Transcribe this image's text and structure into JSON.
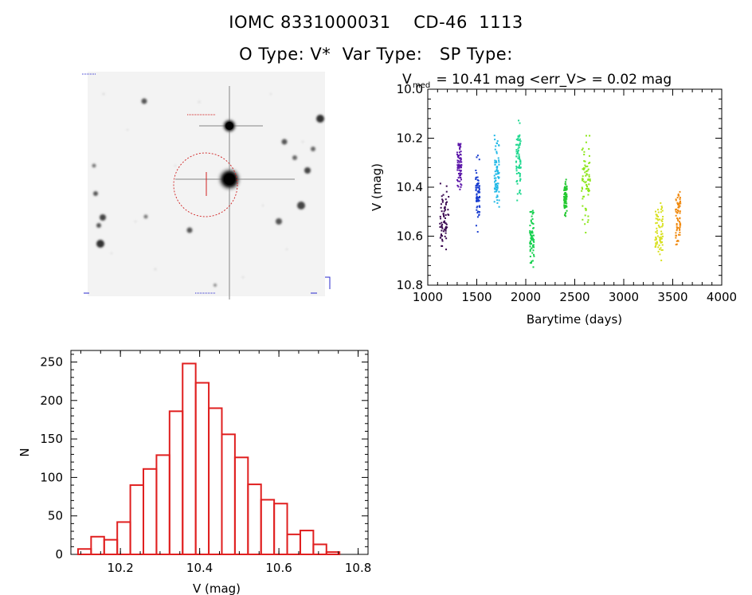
{
  "header": {
    "line1": "IOMC 8331000031    CD-46  1113",
    "line2": "O Type: V*  Var Type:   SP Type:"
  },
  "chart_data": [
    {
      "type": "scatter",
      "title_main": "V",
      "title_sub": "med",
      "title_rest": " = 10.41 mag <err_V> = 0.02 mag",
      "xlabel": "Barytime (days)",
      "ylabel": "V (mag)",
      "xlim": [
        1000,
        4000
      ],
      "ylim": [
        10.8,
        10.0
      ],
      "y_inverted": true,
      "xticks": [
        "1000",
        "1500",
        "2000",
        "2500",
        "3000",
        "3500",
        "4000"
      ],
      "yticks": [
        "10.0",
        "10.2",
        "10.4",
        "10.6",
        "10.8"
      ],
      "series": [
        {
          "color": "#3a0850",
          "x": [
            1120,
            1215
          ],
          "y_range": [
            10.34,
            10.7
          ]
        },
        {
          "color": "#5a14a8",
          "x": [
            1300,
            1345
          ],
          "y_range": [
            10.18,
            10.45
          ]
        },
        {
          "color": "#1a3ed0",
          "x": [
            1490,
            1530
          ],
          "y_range": [
            10.24,
            10.62
          ]
        },
        {
          "color": "#20b8e6",
          "x": [
            1680,
            1730
          ],
          "y_range": [
            10.12,
            10.56
          ]
        },
        {
          "color": "#20d890",
          "x": [
            1900,
            1950
          ],
          "y_range": [
            10.1,
            10.5
          ]
        },
        {
          "color": "#18d050",
          "x": [
            2040,
            2085
          ],
          "y_range": [
            10.46,
            10.76
          ]
        },
        {
          "color": "#22c830",
          "x": [
            2390,
            2420
          ],
          "y_range": [
            10.34,
            10.54
          ]
        },
        {
          "color": "#8ce61a",
          "x": [
            2570,
            2660
          ],
          "y_range": [
            10.12,
            10.62
          ]
        },
        {
          "color": "#d8e020",
          "x": [
            3320,
            3400
          ],
          "y_range": [
            10.4,
            10.74
          ]
        },
        {
          "color": "#f08a10",
          "x": [
            3530,
            3580
          ],
          "y_range": [
            10.32,
            10.68
          ]
        }
      ]
    },
    {
      "type": "bar",
      "xlabel": "V (mag)",
      "ylabel": "N",
      "xlim": [
        10.075,
        10.825
      ],
      "ylim": [
        0,
        265
      ],
      "bin_width": 0.033,
      "bin_start": 10.093,
      "values": [
        7,
        23,
        19,
        42,
        90,
        111,
        129,
        186,
        248,
        223,
        190,
        156,
        126,
        91,
        71,
        66,
        26,
        31,
        13,
        3
      ],
      "xticks": [
        "10.2",
        "10.4",
        "10.6",
        "10.8"
      ],
      "yticks": [
        "0",
        "50",
        "100",
        "150",
        "200",
        "250"
      ],
      "bar_color": "#e02020"
    }
  ]
}
